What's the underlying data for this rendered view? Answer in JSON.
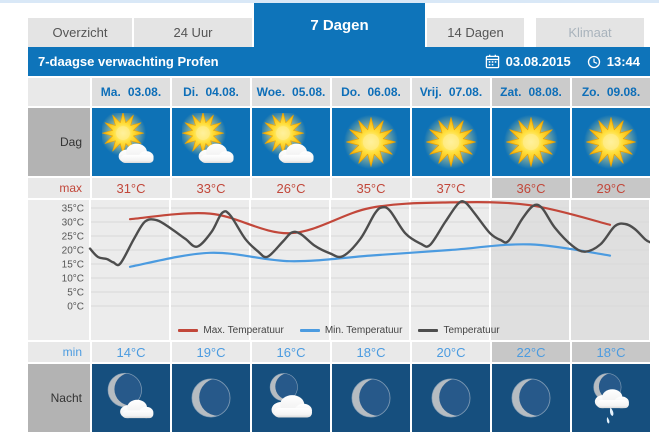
{
  "tabs": {
    "items": [
      {
        "label": "Overzicht",
        "state": "normal"
      },
      {
        "label": "24 Uur",
        "state": "normal"
      },
      {
        "label": "7 Dagen",
        "state": "active"
      },
      {
        "label": "14 Dagen",
        "state": "normal"
      },
      {
        "label": "Klimaat",
        "state": "disabled"
      }
    ]
  },
  "header": {
    "title": "7-daagse verwachting Profen",
    "date": "03.08.2015",
    "time": "13:44"
  },
  "row_labels": {
    "day": "Dag",
    "max": "max",
    "min": "min",
    "night": "Nacht"
  },
  "days": [
    {
      "abbr": "Ma.",
      "date": "03.08.",
      "max": "31°C",
      "min": "14°C",
      "day_icon": "sun-cloud",
      "night_icon": "moon-cloud",
      "weekend": false
    },
    {
      "abbr": "Di.",
      "date": "04.08.",
      "max": "33°C",
      "min": "19°C",
      "day_icon": "sun-cloud",
      "night_icon": "moon",
      "weekend": false
    },
    {
      "abbr": "Woe.",
      "date": "05.08.",
      "max": "26°C",
      "min": "16°C",
      "day_icon": "sun-cloud",
      "night_icon": "cloud-moon",
      "weekend": false
    },
    {
      "abbr": "Do.",
      "date": "06.08.",
      "max": "35°C",
      "min": "18°C",
      "day_icon": "sun",
      "night_icon": "moon",
      "weekend": false
    },
    {
      "abbr": "Vrij.",
      "date": "07.08.",
      "max": "37°C",
      "min": "20°C",
      "day_icon": "sun",
      "night_icon": "moon",
      "weekend": false
    },
    {
      "abbr": "Zat.",
      "date": "08.08.",
      "max": "36°C",
      "min": "22°C",
      "day_icon": "sun",
      "night_icon": "moon",
      "weekend": true
    },
    {
      "abbr": "Zo.",
      "date": "09.08.",
      "max": "29°C",
      "min": "18°C",
      "day_icon": "sun",
      "night_icon": "moon-rain",
      "weekend": true
    }
  ],
  "chart_data": {
    "type": "line",
    "title": "",
    "x_categories": [
      "Ma. 03.08.",
      "Di. 04.08.",
      "Woe. 05.08.",
      "Do. 06.08.",
      "Vrij. 07.08.",
      "Zat. 08.08.",
      "Zo. 09.08."
    ],
    "y_ticks": [
      "35°C",
      "30°C",
      "25°C",
      "20°C",
      "15°C",
      "10°C",
      "5°C",
      "0°C"
    ],
    "ylabel": "",
    "xlabel": "",
    "ylim": [
      0,
      38
    ],
    "grid": true,
    "legend_position": "bottom",
    "weekend_shading_from_column": 5,
    "series": [
      {
        "name": "Max. Temperatuur",
        "color": "#c2473a",
        "unit": "°C",
        "at_day_centers": true,
        "values": [
          31,
          33,
          26,
          35,
          37,
          36,
          29
        ]
      },
      {
        "name": "Min. Temperatuur",
        "color": "#4b9be0",
        "unit": "°C",
        "at_day_centers": true,
        "values": [
          14,
          19,
          16,
          18,
          20,
          22,
          18
        ]
      },
      {
        "name": "Temperatuur",
        "color": "#4d4d4d",
        "unit": "°C",
        "points_day_temp": [
          [
            0,
            20.5
          ],
          [
            0.1,
            17.5
          ],
          [
            0.21,
            16.8
          ],
          [
            0.29,
            15.6
          ],
          [
            0.38,
            15.2
          ],
          [
            0.55,
            24
          ],
          [
            0.69,
            30.2
          ],
          [
            0.84,
            30.6
          ],
          [
            1.02,
            27.5
          ],
          [
            1.19,
            24
          ],
          [
            1.34,
            21.2
          ],
          [
            1.52,
            26.5
          ],
          [
            1.65,
            33.2
          ],
          [
            1.75,
            32.5
          ],
          [
            1.94,
            24
          ],
          [
            2.1,
            19.5
          ],
          [
            2.22,
            17.6
          ],
          [
            2.41,
            23
          ],
          [
            2.52,
            26.2
          ],
          [
            2.63,
            25.8
          ],
          [
            2.81,
            21.5
          ],
          [
            3.0,
            18.8
          ],
          [
            3.16,
            17.8
          ],
          [
            3.38,
            24
          ],
          [
            3.56,
            33
          ],
          [
            3.65,
            35.2
          ],
          [
            3.75,
            34
          ],
          [
            3.94,
            26
          ],
          [
            4.13,
            22.3
          ],
          [
            4.25,
            21.8
          ],
          [
            4.44,
            30
          ],
          [
            4.6,
            36.5
          ],
          [
            4.69,
            37
          ],
          [
            4.81,
            33
          ],
          [
            5.0,
            26
          ],
          [
            5.13,
            23.6
          ],
          [
            5.23,
            23.2
          ],
          [
            5.4,
            31
          ],
          [
            5.54,
            35.8
          ],
          [
            5.65,
            35
          ],
          [
            5.81,
            28
          ],
          [
            6.03,
            21.5
          ],
          [
            6.19,
            19.4
          ],
          [
            6.38,
            22
          ],
          [
            6.56,
            28.5
          ],
          [
            6.69,
            29.3
          ],
          [
            6.81,
            27.5
          ],
          [
            6.94,
            23.8
          ],
          [
            7.0,
            22.8
          ]
        ]
      }
    ]
  },
  "colors": {
    "accent_blue": "#0e74ba",
    "day_cell_blue": "#0e72b6",
    "night_cell_blue": "#164f7e",
    "max_red": "#c2473a",
    "min_blue": "#4b9be0",
    "temp_gray": "#4d4d4d"
  }
}
